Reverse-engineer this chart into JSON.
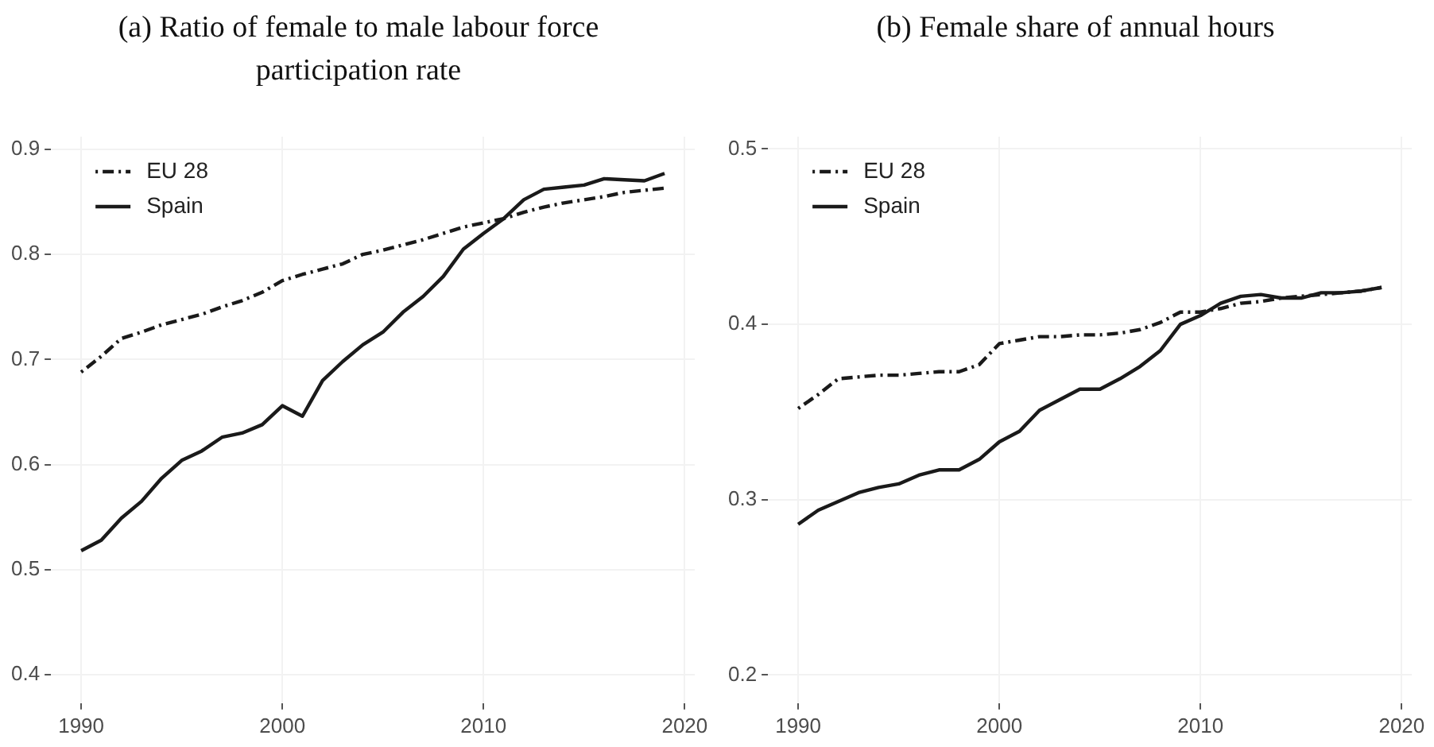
{
  "chart_data": [
    {
      "type": "line",
      "title": "(a) Ratio of female to male labour force participation rate",
      "x": [
        1990,
        1991,
        1992,
        1993,
        1994,
        1995,
        1996,
        1997,
        1998,
        1999,
        2000,
        2001,
        2002,
        2003,
        2004,
        2005,
        2006,
        2007,
        2008,
        2009,
        2010,
        2011,
        2012,
        2013,
        2014,
        2015,
        2016,
        2017,
        2018,
        2019
      ],
      "series": [
        {
          "name": "EU 28",
          "color": "#1a1a1a",
          "line_style": "dashed",
          "values": [
            0.688,
            0.703,
            0.72,
            0.726,
            0.733,
            0.738,
            0.743,
            0.75,
            0.756,
            0.764,
            0.775,
            0.781,
            0.786,
            0.791,
            0.8,
            0.804,
            0.809,
            0.814,
            0.82,
            0.826,
            0.83,
            0.834,
            0.84,
            0.845,
            0.849,
            0.852,
            0.855,
            0.859,
            0.861,
            0.863
          ]
        },
        {
          "name": "Spain",
          "color": "#1a1a1a",
          "line_style": "solid",
          "values": [
            0.518,
            0.528,
            0.549,
            0.565,
            0.587,
            0.604,
            0.613,
            0.626,
            0.63,
            0.638,
            0.656,
            0.646,
            0.68,
            0.698,
            0.714,
            0.726,
            0.745,
            0.76,
            0.779,
            0.805,
            0.82,
            0.834,
            0.852,
            0.862,
            0.864,
            0.866,
            0.872,
            0.871,
            0.87,
            0.877
          ]
        }
      ],
      "xlim": [
        1988.5,
        2020.5
      ],
      "xticks": [
        1990,
        2000,
        2010,
        2020
      ],
      "ylim": [
        0.373,
        0.912
      ],
      "yticks": [
        0.4,
        0.5,
        0.6,
        0.7,
        0.8,
        0.9
      ],
      "grid": true,
      "legend": "top left",
      "marker": "none"
    },
    {
      "type": "line",
      "title": "(b) Female share of annual hours",
      "x": [
        1990,
        1991,
        1992,
        1993,
        1994,
        1995,
        1996,
        1997,
        1998,
        1999,
        2000,
        2001,
        2002,
        2003,
        2004,
        2005,
        2006,
        2007,
        2008,
        2009,
        2010,
        2011,
        2012,
        2013,
        2014,
        2015,
        2016,
        2017,
        2018,
        2019
      ],
      "series": [
        {
          "name": "EU 28",
          "color": "#1a1a1a",
          "line_style": "dashed",
          "values": [
            0.352,
            0.36,
            0.369,
            0.37,
            0.371,
            0.371,
            0.372,
            0.373,
            0.373,
            0.377,
            0.389,
            0.391,
            0.393,
            0.393,
            0.394,
            0.394,
            0.395,
            0.397,
            0.401,
            0.407,
            0.407,
            0.409,
            0.412,
            0.413,
            0.415,
            0.416,
            0.417,
            0.418,
            0.419,
            0.421
          ]
        },
        {
          "name": "Spain",
          "color": "#1a1a1a",
          "line_style": "solid",
          "values": [
            0.286,
            0.294,
            0.299,
            0.304,
            0.307,
            0.309,
            0.314,
            0.317,
            0.317,
            0.323,
            0.333,
            0.339,
            0.351,
            0.357,
            0.363,
            0.363,
            0.369,
            0.376,
            0.385,
            0.4,
            0.405,
            0.412,
            0.416,
            0.417,
            0.415,
            0.415,
            0.418,
            0.418,
            0.419,
            0.421
          ]
        }
      ],
      "xlim": [
        1988.5,
        2020.5
      ],
      "xticks": [
        1990,
        2000,
        2010,
        2020
      ],
      "ylim": [
        0.184,
        0.507
      ],
      "yticks": [
        0.2,
        0.3,
        0.4,
        0.5
      ],
      "grid": true,
      "legend": "top left",
      "marker": "none"
    }
  ]
}
